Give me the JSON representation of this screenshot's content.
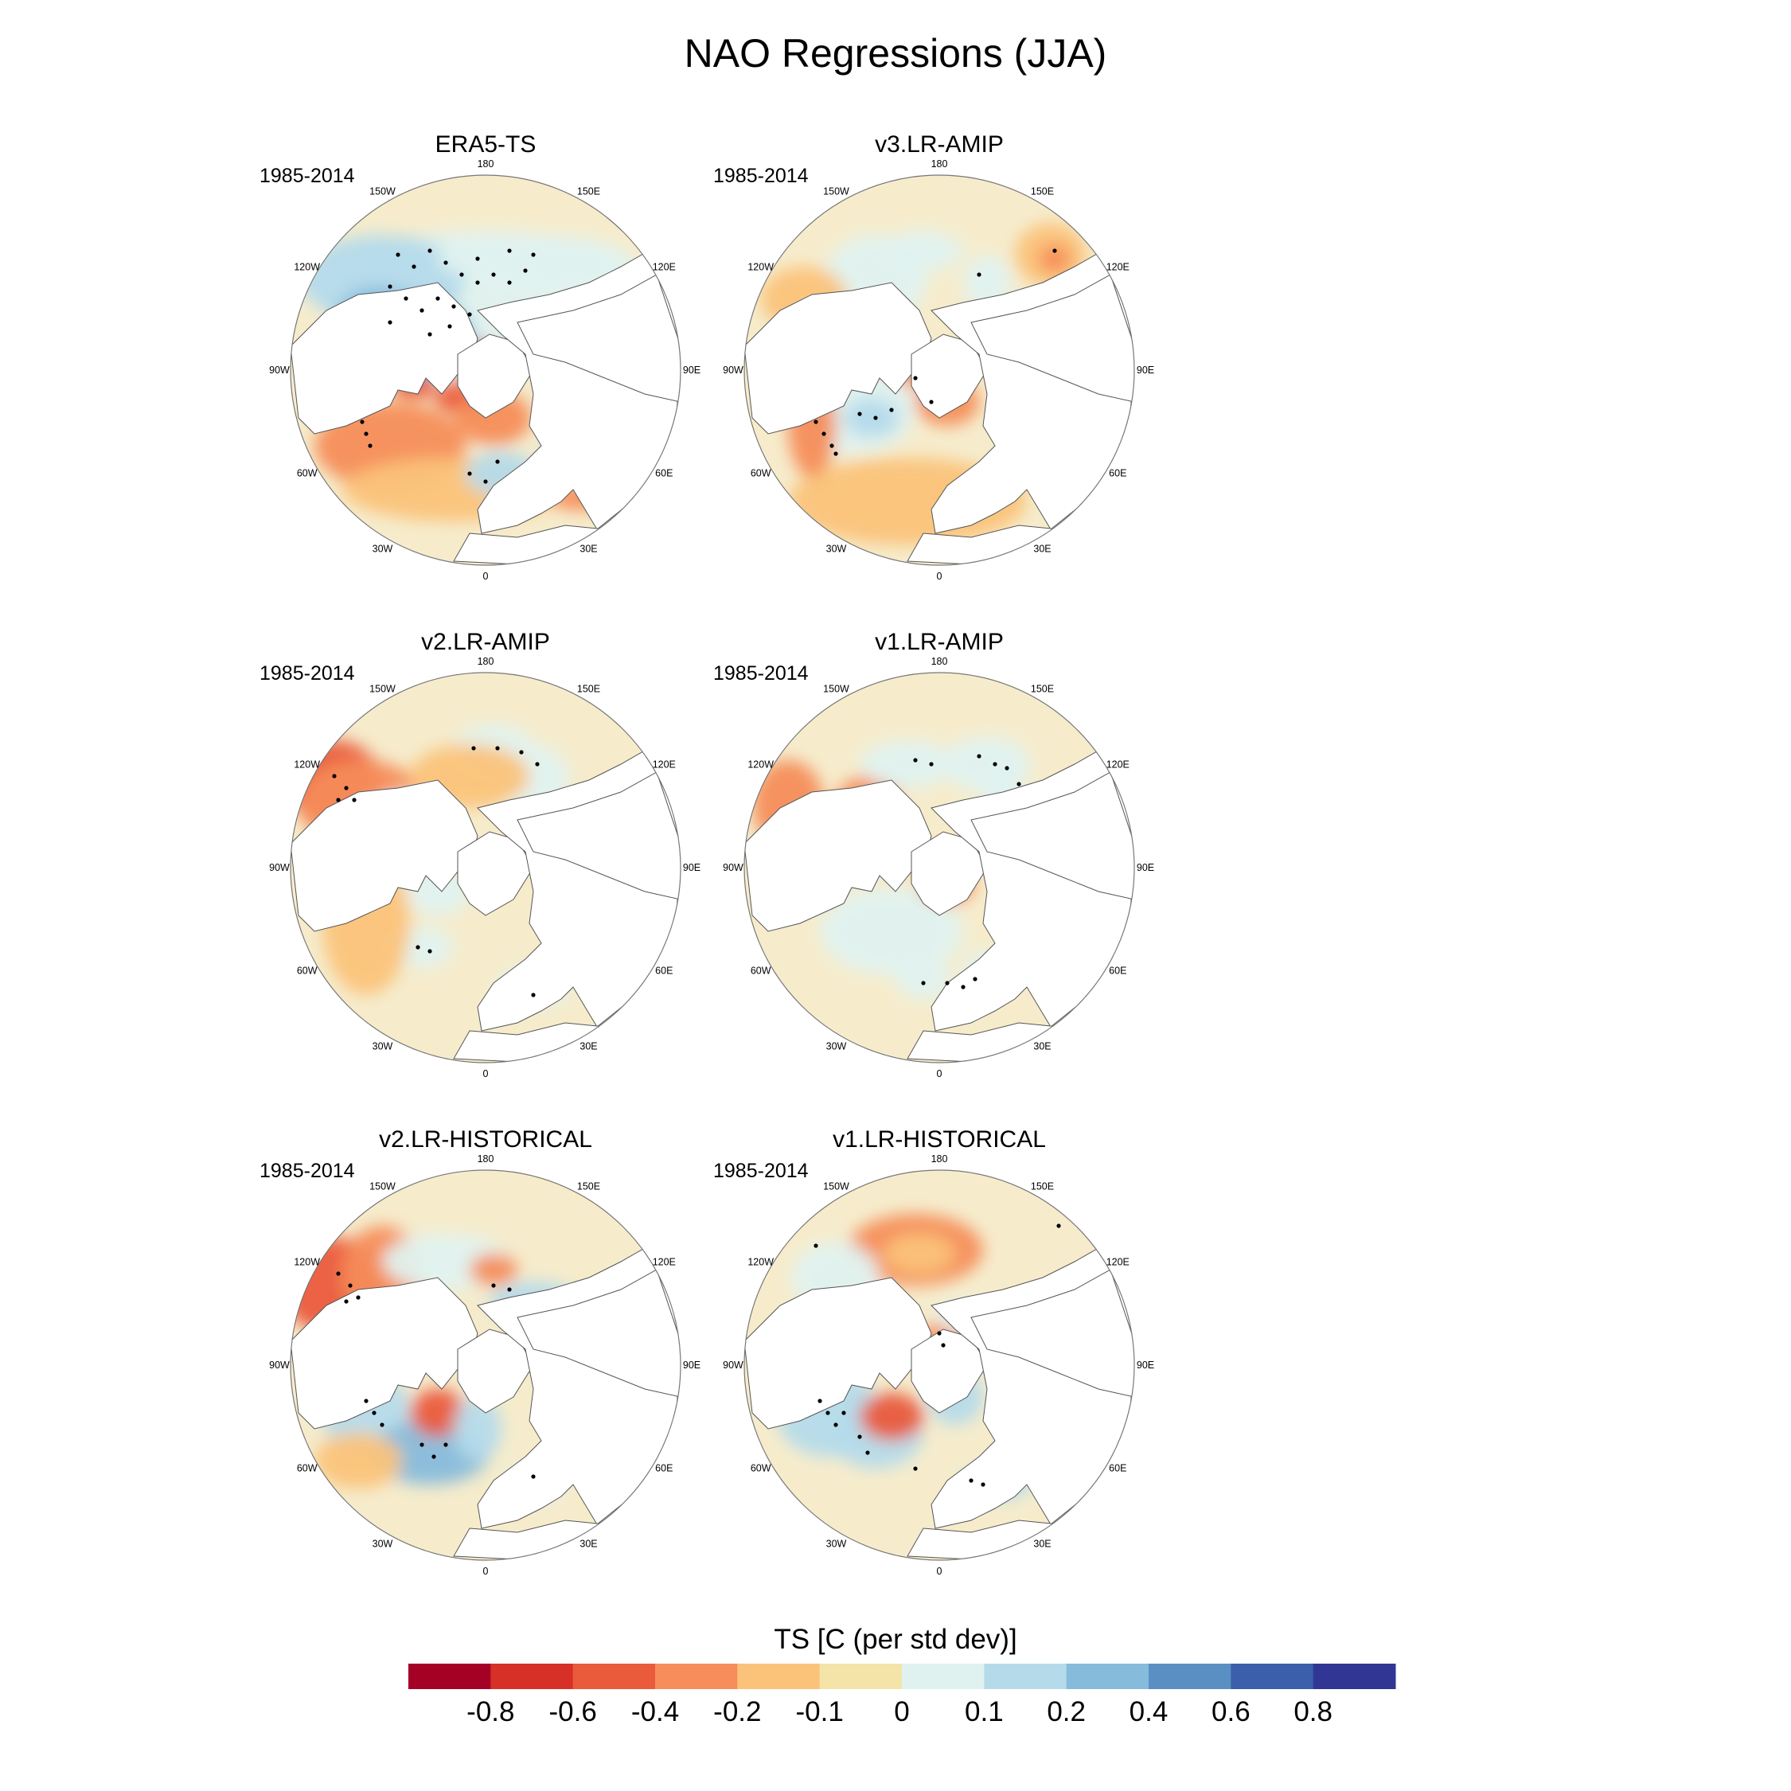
{
  "title": "NAO Regressions (JJA)",
  "panels": [
    {
      "id": "era5",
      "title": "ERA5-TS",
      "period": "1985-2014",
      "blobs": [
        [
          "b-cap",
          0,
          -100,
          215,
          75,
          6
        ],
        [
          "b-cap",
          -130,
          -115,
          105,
          55,
          7
        ],
        [
          "b-cap",
          -90,
          -40,
          75,
          55,
          8
        ],
        [
          "b-cap",
          60,
          -140,
          120,
          30,
          6
        ],
        [
          "b-cap",
          -135,
          -60,
          55,
          45,
          8
        ],
        [
          "r-cap",
          -5,
          -20,
          24,
          14,
          1
        ],
        [
          "r-cap",
          -90,
          20,
          28,
          16,
          2
        ],
        [
          "r-cap",
          -30,
          35,
          34,
          20,
          2
        ],
        [
          "r-cap",
          10,
          60,
          48,
          34,
          3
        ],
        [
          "r-cap",
          -120,
          95,
          95,
          55,
          3
        ],
        [
          "r-cap",
          -40,
          150,
          140,
          40,
          4
        ],
        [
          "b-cap",
          20,
          130,
          45,
          28,
          7
        ],
        [
          "b-cap",
          95,
          100,
          24,
          18,
          7
        ],
        [
          "r-cap",
          120,
          160,
          40,
          16,
          3
        ],
        [
          "r-cap",
          185,
          125,
          22,
          30,
          3
        ]
      ],
      "dots": [
        [
          -110,
          -145
        ],
        [
          -90,
          -130
        ],
        [
          -70,
          -150
        ],
        [
          -50,
          -135
        ],
        [
          -30,
          -120
        ],
        [
          -10,
          -110
        ],
        [
          10,
          -120
        ],
        [
          30,
          -110
        ],
        [
          50,
          -125
        ],
        [
          -120,
          -105
        ],
        [
          -100,
          -90
        ],
        [
          -80,
          -75
        ],
        [
          -60,
          -90
        ],
        [
          -40,
          -80
        ],
        [
          -20,
          -70
        ],
        [
          -120,
          -60
        ],
        [
          -70,
          -45
        ],
        [
          -45,
          -55
        ],
        [
          -10,
          -140
        ],
        [
          30,
          -150
        ],
        [
          60,
          -145
        ],
        [
          -155,
          65
        ],
        [
          -150,
          80
        ],
        [
          -145,
          95
        ],
        [
          -20,
          130
        ],
        [
          0,
          140
        ],
        [
          15,
          115
        ]
      ]
    },
    {
      "id": "v3",
      "title": "v3.LR-AMIP",
      "period": "1985-2014",
      "blobs": [
        [
          "b-cap",
          -80,
          -115,
          65,
          55,
          6
        ],
        [
          "b-cap",
          -20,
          -150,
          50,
          25,
          6
        ],
        [
          "b-cap",
          60,
          -110,
          30,
          35,
          6
        ],
        [
          "r-cap",
          140,
          -145,
          45,
          40,
          4
        ],
        [
          "r-cap",
          145,
          -140,
          20,
          18,
          3
        ],
        [
          "r-cap",
          -170,
          -90,
          55,
          40,
          4
        ],
        [
          "r-cap",
          -30,
          5,
          28,
          16,
          3
        ],
        [
          "r-cap",
          10,
          40,
          40,
          30,
          3
        ],
        [
          "b-cap",
          -110,
          50,
          80,
          55,
          6
        ],
        [
          "b-cap",
          -85,
          60,
          35,
          25,
          7
        ],
        [
          "r-cap",
          -40,
          165,
          150,
          55,
          4
        ],
        [
          "r-cap",
          -160,
          70,
          30,
          65,
          3
        ],
        [
          "b-cap",
          100,
          120,
          25,
          20,
          7
        ]
      ],
      "dots": [
        [
          -155,
          65
        ],
        [
          -145,
          80
        ],
        [
          -135,
          95
        ],
        [
          -130,
          105
        ],
        [
          -100,
          55
        ],
        [
          -80,
          60
        ],
        [
          -60,
          50
        ],
        [
          -30,
          10
        ],
        [
          50,
          -120
        ],
        [
          145,
          -150
        ],
        [
          -10,
          40
        ]
      ]
    },
    {
      "id": "v2amip",
      "title": "v2.LR-AMIP",
      "period": "1985-2014",
      "blobs": [
        [
          "r-cap",
          -190,
          -105,
          60,
          55,
          2
        ],
        [
          "r-cap",
          -155,
          -80,
          80,
          55,
          3
        ],
        [
          "b-cap",
          10,
          -150,
          50,
          30,
          6
        ],
        [
          "b-cap",
          60,
          -110,
          45,
          45,
          6
        ],
        [
          "b-cap",
          -100,
          -50,
          55,
          45,
          6
        ],
        [
          "r-cap",
          -20,
          -115,
          75,
          40,
          4
        ],
        [
          "b-cap",
          -80,
          100,
          40,
          25,
          6
        ],
        [
          "b-cap",
          60,
          150,
          45,
          25,
          6
        ],
        [
          "b-cap",
          -60,
          30,
          40,
          30,
          6
        ],
        [
          "r-cap",
          -150,
          70,
          55,
          90,
          4
        ]
      ],
      "dots": [
        [
          -190,
          -115
        ],
        [
          -175,
          -100
        ],
        [
          -165,
          -85
        ],
        [
          -185,
          -85
        ],
        [
          -15,
          -150
        ],
        [
          15,
          -150
        ],
        [
          45,
          -145
        ],
        [
          65,
          -130
        ],
        [
          -85,
          100
        ],
        [
          -70,
          105
        ],
        [
          60,
          160
        ]
      ]
    },
    {
      "id": "v1amip",
      "title": "v1.LR-AMIP",
      "period": "1985-2014",
      "blobs": [
        [
          "r-cap",
          -190,
          -80,
          45,
          55,
          3
        ],
        [
          "r-cap",
          -90,
          -80,
          40,
          35,
          3
        ],
        [
          "b-cap",
          -40,
          -130,
          60,
          30,
          6
        ],
        [
          "b-cap",
          60,
          -130,
          55,
          35,
          6
        ],
        [
          "b-cap",
          80,
          -90,
          25,
          40,
          6
        ],
        [
          "b-cap",
          -60,
          80,
          90,
          55,
          6
        ],
        [
          "b-cap",
          -20,
          140,
          35,
          25,
          6
        ],
        [
          "b-cap",
          60,
          130,
          30,
          25,
          6
        ],
        [
          "r-cap",
          10,
          20,
          34,
          26,
          3
        ],
        [
          "r-cap",
          -20,
          -10,
          20,
          20,
          4
        ]
      ],
      "dots": [
        [
          -30,
          -135
        ],
        [
          -10,
          -130
        ],
        [
          50,
          -140
        ],
        [
          70,
          -130
        ],
        [
          85,
          -125
        ],
        [
          100,
          -105
        ],
        [
          -20,
          145
        ],
        [
          10,
          145
        ],
        [
          30,
          150
        ],
        [
          45,
          140
        ]
      ]
    },
    {
      "id": "v2hist",
      "title": "v2.LR-HISTORICAL",
      "period": "1985-2014",
      "blobs": [
        [
          "r-cap",
          -190,
          -100,
          70,
          60,
          2
        ],
        [
          "r-cap",
          -130,
          -115,
          50,
          60,
          3
        ],
        [
          "b-cap",
          -50,
          -130,
          80,
          35,
          6
        ],
        [
          "b-cap",
          60,
          -80,
          55,
          25,
          7
        ],
        [
          "r-cap",
          10,
          -120,
          30,
          20,
          3
        ],
        [
          "b-cap",
          -150,
          60,
          55,
          55,
          7
        ],
        [
          "b-cap",
          -70,
          110,
          75,
          40,
          8
        ],
        [
          "r-cap",
          -60,
          60,
          35,
          30,
          2
        ],
        [
          "b-cap",
          -10,
          80,
          30,
          40,
          7
        ],
        [
          "r-cap",
          -160,
          120,
          55,
          35,
          4
        ],
        [
          "b-cap",
          60,
          150,
          40,
          22,
          6
        ]
      ],
      "dots": [
        [
          -185,
          -115
        ],
        [
          -170,
          -100
        ],
        [
          -160,
          -85
        ],
        [
          -175,
          -80
        ],
        [
          -150,
          45
        ],
        [
          -140,
          60
        ],
        [
          -130,
          75
        ],
        [
          -80,
          100
        ],
        [
          -65,
          115
        ],
        [
          -50,
          100
        ],
        [
          10,
          -100
        ],
        [
          30,
          -95
        ],
        [
          60,
          140
        ]
      ]
    },
    {
      "id": "v1hist",
      "title": "v1.LR-HISTORICAL",
      "period": "1985-2014",
      "blobs": [
        [
          "r-cap",
          -30,
          -145,
          85,
          45,
          3
        ],
        [
          "r-cap",
          -25,
          -140,
          45,
          25,
          4
        ],
        [
          "b-cap",
          -130,
          -110,
          55,
          45,
          6
        ],
        [
          "b-cap",
          -140,
          60,
          65,
          55,
          7
        ],
        [
          "b-cap",
          -80,
          85,
          60,
          45,
          7
        ],
        [
          "r-cap",
          -60,
          65,
          40,
          30,
          2
        ],
        [
          "r-cap",
          5,
          -30,
          34,
          24,
          3
        ],
        [
          "b-cap",
          20,
          40,
          35,
          35,
          7
        ],
        [
          "b-cap",
          70,
          150,
          45,
          20,
          7
        ],
        [
          "b-cap",
          40,
          -60,
          45,
          20,
          6
        ]
      ],
      "dots": [
        [
          -150,
          45
        ],
        [
          -140,
          60
        ],
        [
          -130,
          75
        ],
        [
          -120,
          60
        ],
        [
          -100,
          90
        ],
        [
          -90,
          110
        ],
        [
          -30,
          130
        ],
        [
          0,
          -40
        ],
        [
          5,
          -25
        ],
        [
          40,
          145
        ],
        [
          55,
          150
        ],
        [
          150,
          -175
        ],
        [
          -155,
          -150
        ]
      ]
    }
  ],
  "lon_labels": [
    "180",
    "150E",
    "120E",
    "90E",
    "60E",
    "30E",
    "0",
    "30W",
    "60W",
    "90W",
    "120W",
    "150W"
  ],
  "colorbar": {
    "title": "TS [C (per std dev)]",
    "colors": [
      "#a50026",
      "#d73027",
      "#ea5b3c",
      "#f68d5a",
      "#fbc37a",
      "#f5e4a8",
      "#e0f2f0",
      "#b5dbeb",
      "#86bbdb",
      "#5a8fc4",
      "#3b5faa",
      "#313695"
    ],
    "labels": [
      "-0.8",
      "-0.6",
      "-0.4",
      "-0.2",
      "-0.1",
      "0",
      "0.1",
      "0.2",
      "0.4",
      "0.6",
      "0.8"
    ]
  }
}
